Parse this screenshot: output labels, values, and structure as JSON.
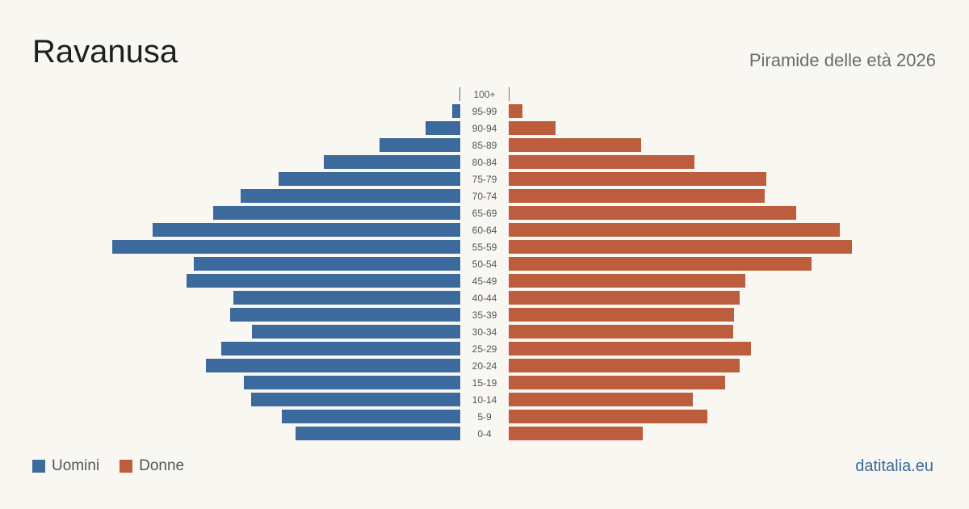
{
  "header": {
    "title": "Ravanusa",
    "subtitle": "Piramide delle età 2026"
  },
  "legend": {
    "men_label": "Uomini",
    "women_label": "Donne"
  },
  "footer": {
    "site": "datitalia.eu"
  },
  "colors": {
    "men": "#3d6a9c",
    "women": "#bc5e3e",
    "tick_text": "#555555"
  },
  "chart_data": {
    "type": "bar",
    "orientation": "horizontal-pyramid",
    "title": "Piramide delle età 2026",
    "categories": [
      "100+",
      "95-99",
      "90-94",
      "85-89",
      "80-84",
      "75-79",
      "70-74",
      "65-69",
      "60-64",
      "55-59",
      "50-54",
      "45-49",
      "40-44",
      "35-39",
      "30-34",
      "25-29",
      "20-24",
      "15-19",
      "10-14",
      "5-9",
      "0-4"
    ],
    "series": [
      {
        "name": "Uomini",
        "values": [
          1,
          10,
          43,
          100,
          169,
          225,
          272,
          306,
          381,
          431,
          330,
          339,
          281,
          285,
          258,
          296,
          315,
          268,
          259,
          221,
          204
        ]
      },
      {
        "name": "Donne",
        "values": [
          1,
          17,
          58,
          164,
          230,
          319,
          317,
          356,
          410,
          425,
          375,
          293,
          286,
          279,
          278,
          300,
          286,
          268,
          228,
          246,
          166
        ]
      }
    ],
    "legend_position": "bottom-left",
    "grid": false
  }
}
